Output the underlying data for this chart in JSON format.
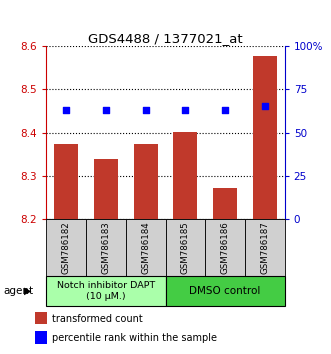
{
  "title": "GDS4488 / 1377021_at",
  "samples": [
    "GSM786182",
    "GSM786183",
    "GSM786184",
    "GSM786185",
    "GSM786186",
    "GSM786187"
  ],
  "bar_values": [
    8.375,
    8.34,
    8.375,
    8.402,
    8.272,
    8.578
  ],
  "percentile_values": [
    8.453,
    8.453,
    8.453,
    8.453,
    8.453,
    8.462
  ],
  "ylim": [
    8.2,
    8.6
  ],
  "yticks_left": [
    8.2,
    8.3,
    8.4,
    8.5,
    8.6
  ],
  "yticks_right": [
    0,
    25,
    50,
    75,
    100
  ],
  "bar_color": "#c0392b",
  "dot_color": "#0000ff",
  "group1_label": "Notch inhibitor DAPT\n(10 μM.)",
  "group2_label": "DMSO control",
  "group1_color": "#aaffaa",
  "group2_color": "#44cc44",
  "agent_label": "agent",
  "legend_bar_label": "transformed count",
  "legend_dot_label": "percentile rank within the sample",
  "left_axis_color": "#cc0000",
  "right_axis_color": "#0000cc",
  "ybase": 8.2,
  "n_group1": 3,
  "n_group2": 3
}
